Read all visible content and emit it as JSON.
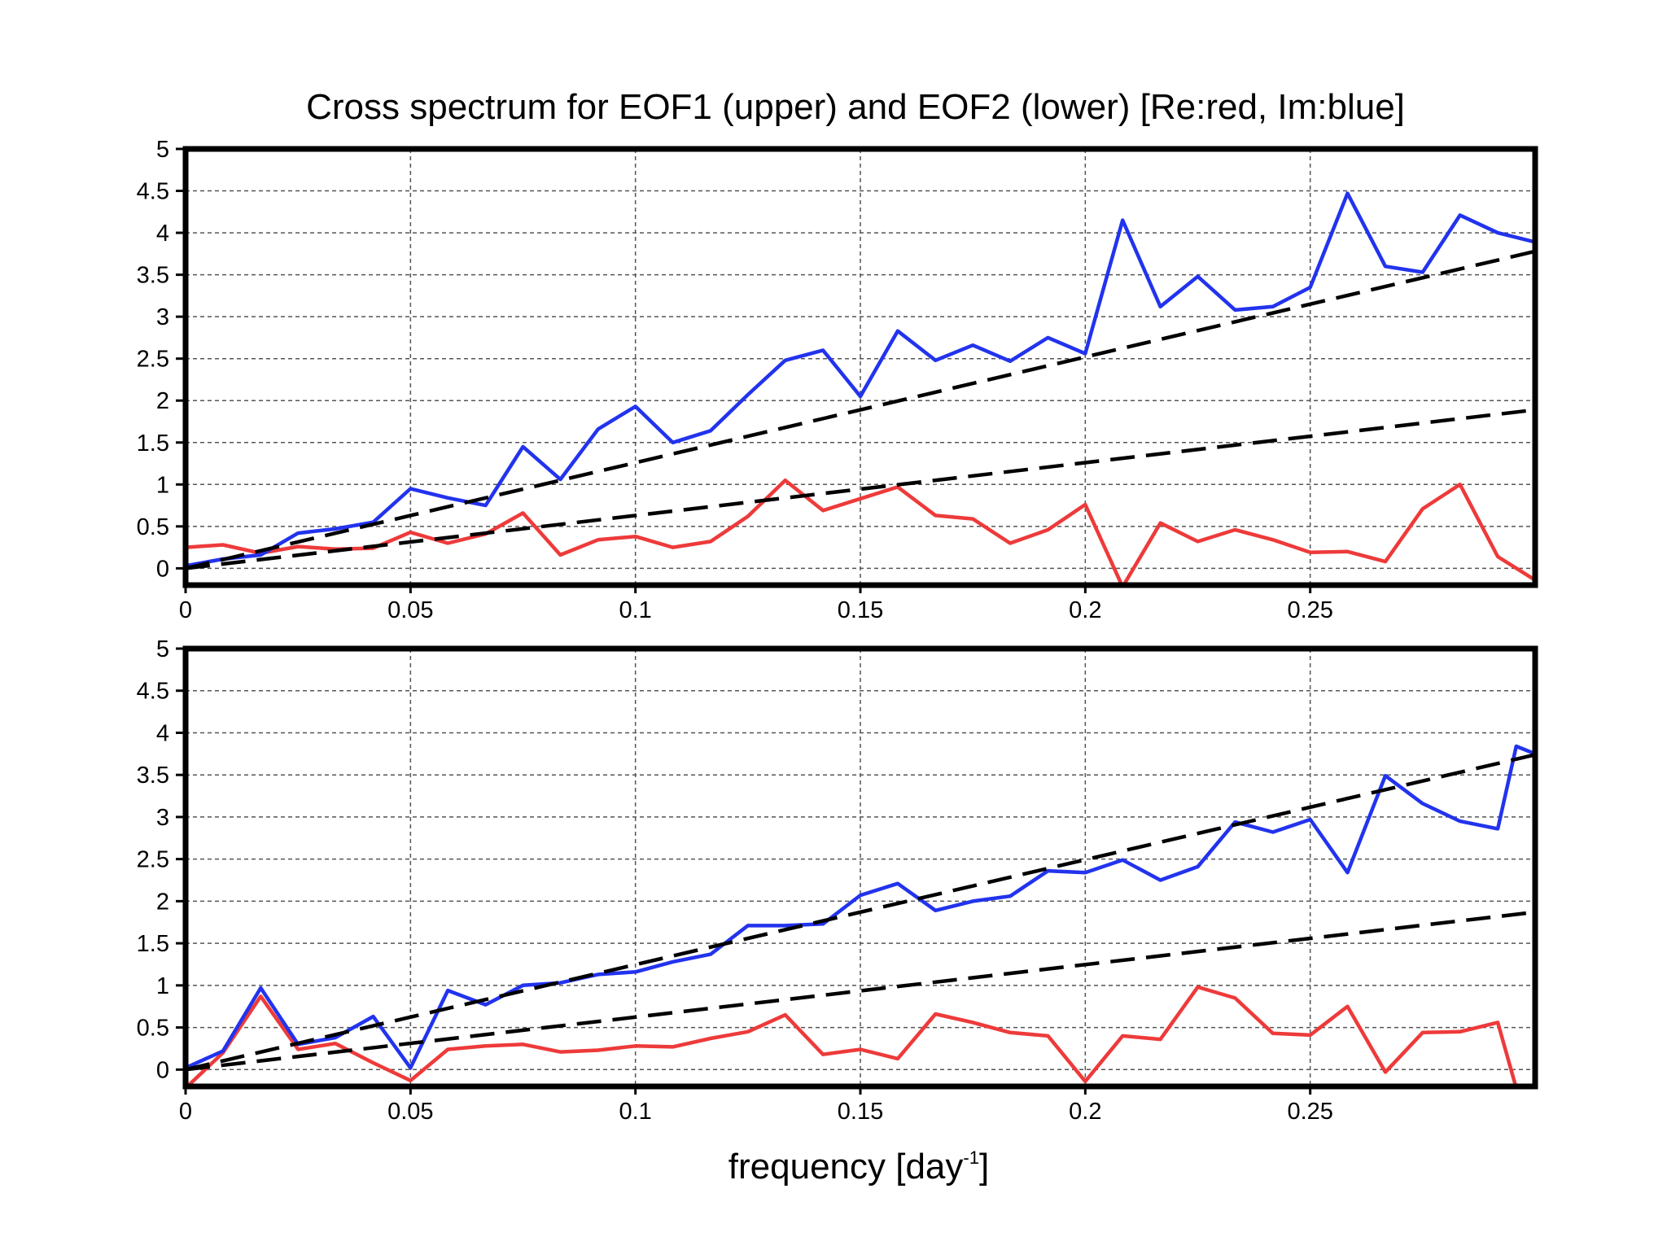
{
  "chart_data": {
    "title": "Cross spectrum for EOF1 (upper) and EOF2 (lower) [Re:red, Im:blue]",
    "xlabel": "frequency [day",
    "xlabel_sup": "-1",
    "xlabel_suffix": "]",
    "colors": {
      "re": "#ee3a3a",
      "im": "#2233ee",
      "reference": "#000000"
    },
    "xlim": [
      0,
      0.3
    ],
    "ylim": [
      -0.2,
      5
    ],
    "x_ticks": [
      "0",
      "0.05",
      "0.1",
      "0.15",
      "0.2",
      "0.25"
    ],
    "y_ticks": [
      "0",
      "0.5",
      "1",
      "1.5",
      "2",
      "2.5",
      "3",
      "3.5",
      "4",
      "4.5",
      "5"
    ],
    "panels": [
      {
        "type": "line",
        "grid": true,
        "series": [
          {
            "key": "re",
            "color": "#ee3a3a",
            "points": [
              [
                0,
                0.25
              ],
              [
                0.0083,
                0.28
              ],
              [
                0.0167,
                0.18
              ],
              [
                0.025,
                0.26
              ],
              [
                0.0333,
                0.23
              ],
              [
                0.0417,
                0.24
              ],
              [
                0.05,
                0.43
              ],
              [
                0.0583,
                0.3
              ],
              [
                0.0667,
                0.41
              ],
              [
                0.075,
                0.66
              ],
              [
                0.0833,
                0.16
              ],
              [
                0.0917,
                0.34
              ],
              [
                0.1,
                0.38
              ],
              [
                0.1083,
                0.25
              ],
              [
                0.1167,
                0.32
              ],
              [
                0.125,
                0.62
              ],
              [
                0.1333,
                1.05
              ],
              [
                0.1417,
                0.69
              ],
              [
                0.15,
                0.83
              ],
              [
                0.1583,
                0.97
              ],
              [
                0.1667,
                0.63
              ],
              [
                0.175,
                0.59
              ],
              [
                0.1833,
                0.3
              ],
              [
                0.1917,
                0.46
              ],
              [
                0.2,
                0.76
              ],
              [
                0.2083,
                -0.22
              ],
              [
                0.2167,
                0.54
              ],
              [
                0.225,
                0.32
              ],
              [
                0.2333,
                0.46
              ],
              [
                0.2417,
                0.34
              ],
              [
                0.25,
                0.19
              ],
              [
                0.2583,
                0.2
              ],
              [
                0.2667,
                0.08
              ],
              [
                0.275,
                0.71
              ],
              [
                0.2833,
                1.0
              ],
              [
                0.2917,
                0.14
              ],
              [
                0.3,
                -0.14
              ]
            ]
          },
          {
            "key": "im",
            "color": "#2233ee",
            "points": [
              [
                0,
                0.03
              ],
              [
                0.0083,
                0.11
              ],
              [
                0.0167,
                0.16
              ],
              [
                0.025,
                0.42
              ],
              [
                0.0333,
                0.47
              ],
              [
                0.0417,
                0.55
              ],
              [
                0.05,
                0.95
              ],
              [
                0.0583,
                0.84
              ],
              [
                0.0667,
                0.75
              ],
              [
                0.075,
                1.45
              ],
              [
                0.0833,
                1.06
              ],
              [
                0.0917,
                1.66
              ],
              [
                0.1,
                1.93
              ],
              [
                0.1083,
                1.5
              ],
              [
                0.1167,
                1.64
              ],
              [
                0.125,
                2.07
              ],
              [
                0.1333,
                2.48
              ],
              [
                0.1417,
                2.6
              ],
              [
                0.15,
                2.05
              ],
              [
                0.1583,
                2.83
              ],
              [
                0.1667,
                2.48
              ],
              [
                0.175,
                2.66
              ],
              [
                0.1833,
                2.47
              ],
              [
                0.1917,
                2.75
              ],
              [
                0.2,
                2.56
              ],
              [
                0.2083,
                4.15
              ],
              [
                0.2167,
                3.12
              ],
              [
                0.225,
                3.48
              ],
              [
                0.2333,
                3.08
              ],
              [
                0.2417,
                3.12
              ],
              [
                0.25,
                3.35
              ],
              [
                0.2583,
                4.47
              ],
              [
                0.2667,
                3.6
              ],
              [
                0.275,
                3.53
              ],
              [
                0.2833,
                4.21
              ],
              [
                0.2917,
                4.0
              ],
              [
                0.3,
                3.89
              ]
            ]
          },
          {
            "key": "reference",
            "color": "#000000",
            "dashed": true,
            "points": [
              [
                0,
                0
              ],
              [
                0.3,
                3.78
              ]
            ]
          },
          {
            "key": "reference",
            "color": "#000000",
            "dashed": true,
            "points": [
              [
                0,
                0
              ],
              [
                0.3,
                1.89
              ]
            ]
          }
        ]
      },
      {
        "type": "line",
        "grid": true,
        "series": [
          {
            "key": "re",
            "color": "#ee3a3a",
            "points": [
              [
                0,
                -0.22
              ],
              [
                0.0083,
                0.2
              ],
              [
                0.0167,
                0.87
              ],
              [
                0.025,
                0.24
              ],
              [
                0.0333,
                0.31
              ],
              [
                0.0417,
                0.08
              ],
              [
                0.05,
                -0.13
              ],
              [
                0.0583,
                0.24
              ],
              [
                0.0667,
                0.28
              ],
              [
                0.075,
                0.3
              ],
              [
                0.0833,
                0.21
              ],
              [
                0.0917,
                0.23
              ],
              [
                0.1,
                0.28
              ],
              [
                0.1083,
                0.27
              ],
              [
                0.1167,
                0.37
              ],
              [
                0.125,
                0.45
              ],
              [
                0.1333,
                0.65
              ],
              [
                0.1417,
                0.18
              ],
              [
                0.15,
                0.24
              ],
              [
                0.1583,
                0.13
              ],
              [
                0.1667,
                0.66
              ],
              [
                0.175,
                0.56
              ],
              [
                0.1833,
                0.44
              ],
              [
                0.1917,
                0.4
              ],
              [
                0.2,
                -0.14
              ],
              [
                0.2083,
                0.4
              ],
              [
                0.2167,
                0.36
              ],
              [
                0.225,
                0.98
              ],
              [
                0.2333,
                0.85
              ],
              [
                0.2417,
                0.43
              ],
              [
                0.25,
                0.41
              ],
              [
                0.2583,
                0.75
              ],
              [
                0.2667,
                -0.03
              ],
              [
                0.275,
                0.44
              ],
              [
                0.2833,
                0.45
              ],
              [
                0.2917,
                0.56
              ],
              [
                0.2958,
                -0.22
              ]
            ]
          },
          {
            "key": "im",
            "color": "#2233ee",
            "points": [
              [
                0,
                0.02
              ],
              [
                0.0083,
                0.22
              ],
              [
                0.0167,
                0.97
              ],
              [
                0.025,
                0.3
              ],
              [
                0.0333,
                0.38
              ],
              [
                0.0417,
                0.63
              ],
              [
                0.05,
                0.02
              ],
              [
                0.0583,
                0.94
              ],
              [
                0.0667,
                0.77
              ],
              [
                0.075,
                1.0
              ],
              [
                0.0833,
                1.03
              ],
              [
                0.0917,
                1.13
              ],
              [
                0.1,
                1.16
              ],
              [
                0.1083,
                1.28
              ],
              [
                0.1167,
                1.37
              ],
              [
                0.125,
                1.71
              ],
              [
                0.1333,
                1.71
              ],
              [
                0.1417,
                1.73
              ],
              [
                0.15,
                2.07
              ],
              [
                0.1583,
                2.21
              ],
              [
                0.1667,
                1.89
              ],
              [
                0.175,
                2.0
              ],
              [
                0.1833,
                2.06
              ],
              [
                0.1917,
                2.36
              ],
              [
                0.2,
                2.34
              ],
              [
                0.2083,
                2.49
              ],
              [
                0.2167,
                2.25
              ],
              [
                0.225,
                2.41
              ],
              [
                0.2333,
                2.94
              ],
              [
                0.2417,
                2.82
              ],
              [
                0.25,
                2.97
              ],
              [
                0.2583,
                2.34
              ],
              [
                0.2667,
                3.49
              ],
              [
                0.275,
                3.16
              ],
              [
                0.2833,
                2.95
              ],
              [
                0.2917,
                2.86
              ],
              [
                0.2958,
                3.84
              ],
              [
                0.3,
                3.75
              ]
            ]
          },
          {
            "key": "reference",
            "color": "#000000",
            "dashed": true,
            "points": [
              [
                0,
                0
              ],
              [
                0.3,
                3.74
              ]
            ]
          },
          {
            "key": "reference",
            "color": "#000000",
            "dashed": true,
            "points": [
              [
                0,
                0
              ],
              [
                0.3,
                1.87
              ]
            ]
          }
        ]
      }
    ]
  }
}
